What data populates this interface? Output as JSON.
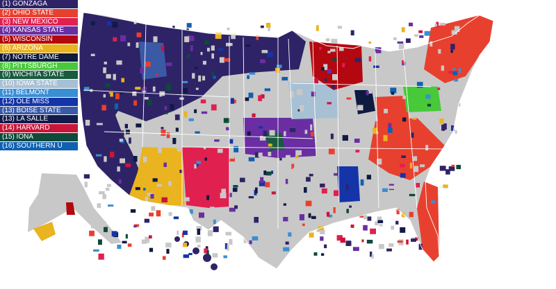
{
  "legend": [
    {
      "label": "(1) GONZAGA",
      "color": "#2e2366"
    },
    {
      "label": "(2) OHIO STATE",
      "color": "#e8402f"
    },
    {
      "label": "(3) NEW MEXICO",
      "color": "#e0204f"
    },
    {
      "label": "(4) KANSAS STATE",
      "color": "#6a2ea2"
    },
    {
      "label": "(5) WISCONSIN",
      "color": "#b3080f"
    },
    {
      "label": "(6) ARIZONA",
      "color": "#eab320"
    },
    {
      "label": "(7) NOTRE DAME",
      "color": "#0e1a3f"
    },
    {
      "label": "(8) PITTSBURGH",
      "color": "#48c93a"
    },
    {
      "label": "(9) WICHITA STATE",
      "color": "#1a5a3f"
    },
    {
      "label": "(10) IOWA STATE",
      "color": "#a8c0d4"
    },
    {
      "label": "(11) BELMONT",
      "color": "#3a8ed2"
    },
    {
      "label": "(12) OLE MISS",
      "color": "#1534a8"
    },
    {
      "label": "(13) BOISE STATE",
      "color": "#3a5aa6"
    },
    {
      "label": "(13) LA SALLE",
      "color": "#111a4a"
    },
    {
      "label": "(14) HARVARD",
      "color": "#c8163a"
    },
    {
      "label": "(15) IONA",
      "color": "#0d4a3a"
    },
    {
      "label": "(16) SOUTHERN U",
      "color": "#1060b0"
    }
  ],
  "base_color": "#c8c8c8"
}
